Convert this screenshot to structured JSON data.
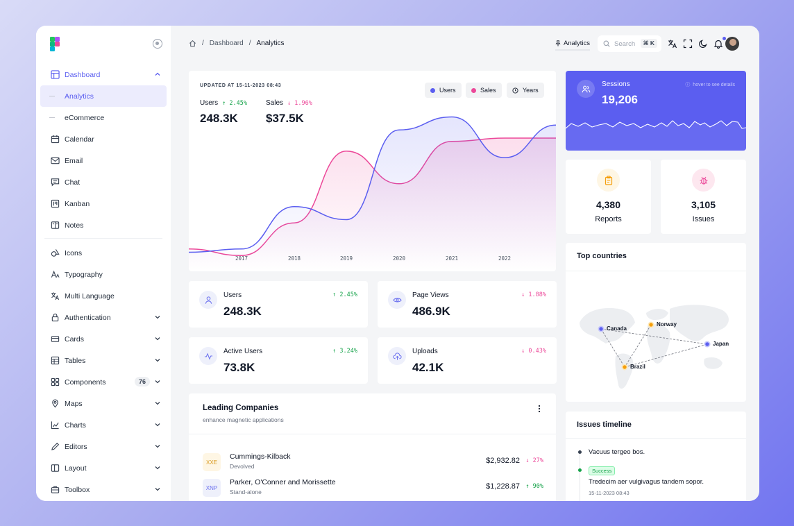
{
  "sidebar": {
    "items": [
      {
        "label": "Dashboard",
        "icon": "dashboard-icon"
      },
      {
        "label": "Analytics"
      },
      {
        "label": "eCommerce"
      },
      {
        "label": "Calendar",
        "icon": "calendar-icon"
      },
      {
        "label": "Email",
        "icon": "mail-icon"
      },
      {
        "label": "Chat",
        "icon": "chat-icon"
      },
      {
        "label": "Kanban",
        "icon": "kanban-icon"
      },
      {
        "label": "Notes",
        "icon": "notes-icon"
      },
      {
        "label": "Icons",
        "icon": "shapes-icon"
      },
      {
        "label": "Typography",
        "icon": "typography-icon"
      },
      {
        "label": "Multi Language",
        "icon": "language-icon"
      },
      {
        "label": "Authentication",
        "icon": "lock-icon"
      },
      {
        "label": "Cards",
        "icon": "cards-icon"
      },
      {
        "label": "Tables",
        "icon": "table-icon"
      },
      {
        "label": "Components",
        "icon": "components-icon",
        "badge": "76"
      },
      {
        "label": "Maps",
        "icon": "map-icon"
      },
      {
        "label": "Charts",
        "icon": "chart-icon"
      },
      {
        "label": "Editors",
        "icon": "pen-icon"
      },
      {
        "label": "Layout",
        "icon": "layout-icon"
      },
      {
        "label": "Toolbox",
        "icon": "toolbox-icon"
      }
    ]
  },
  "topbar": {
    "breadcrumb": [
      "Dashboard",
      "Analytics"
    ],
    "pin_label": "Analytics",
    "search_placeholder": "Search",
    "search_shortcut": "⌘ K"
  },
  "overview": {
    "updated": "UPDATED AT 15-11-2023 08:43",
    "legend": [
      "Users",
      "Sales",
      "Years"
    ],
    "users": {
      "label": "Users",
      "change": "2.45%",
      "value": "248.3K"
    },
    "sales": {
      "label": "Sales",
      "change": "1.96%",
      "value": "$37.5K"
    },
    "years": [
      "2017",
      "2018",
      "2019",
      "2020",
      "2021",
      "2022"
    ]
  },
  "chart_data": {
    "type": "area",
    "x": [
      "2016.5",
      "2017",
      "2018",
      "2019",
      "2020",
      "2021",
      "2022",
      "2023"
    ],
    "series": [
      {
        "name": "Users",
        "values": [
          0.1,
          0.12,
          0.38,
          0.3,
          0.85,
          0.93,
          0.68,
          0.88
        ],
        "color": "#5b5ef0"
      },
      {
        "name": "Sales",
        "values": [
          0.12,
          0.08,
          0.28,
          0.72,
          0.52,
          0.78,
          0.8,
          0.8
        ],
        "color": "#ec4899"
      }
    ]
  },
  "stats": [
    {
      "label": "Users",
      "value": "248.3K",
      "change": "2.45%",
      "trend": "up",
      "icon": "user-icon"
    },
    {
      "label": "Page Views",
      "value": "486.9K",
      "change": "1.88%",
      "trend": "down",
      "icon": "eye-icon"
    },
    {
      "label": "Active Users",
      "value": "73.8K",
      "change": "3.24%",
      "trend": "up",
      "icon": "activity-icon"
    },
    {
      "label": "Uploads",
      "value": "42.1K",
      "change": "0.43%",
      "trend": "down",
      "icon": "cloud-upload-icon"
    }
  ],
  "leading": {
    "title": "Leading Companies",
    "subtitle": "enhance magnetic applications",
    "rows": [
      {
        "logo": "XXE",
        "name": "Cummings-Kilback",
        "desc": "Devolved",
        "amount": "$2,932.82",
        "change": "27%",
        "trend": "down"
      },
      {
        "logo": "XNP",
        "name": "Parker, O'Conner and Morissette",
        "desc": "Stand-alone",
        "amount": "$1,228.87",
        "change": "90%",
        "trend": "up"
      }
    ]
  },
  "sessions": {
    "label": "Sessions",
    "value": "19,206",
    "hint": "hover to see details"
  },
  "reports": {
    "value": "4,380",
    "label": "Reports"
  },
  "issues": {
    "value": "3,105",
    "label": "Issues"
  },
  "top_countries": {
    "title": "Top countries",
    "countries": [
      "Canada",
      "Norway",
      "Japan",
      "Brazil"
    ]
  },
  "timeline": {
    "title": "Issues timeline",
    "items": [
      {
        "text": "Vacuus tergeo bos."
      },
      {
        "badge": "Success",
        "text": "Tredecim aer vulgivagus tandem sopor.",
        "date": "15-11-2023 08:43"
      }
    ]
  },
  "colors": {
    "accent": "#5b5ef0",
    "pink": "#ec4899",
    "green": "#16a34a",
    "amber": "#f59e0b"
  }
}
